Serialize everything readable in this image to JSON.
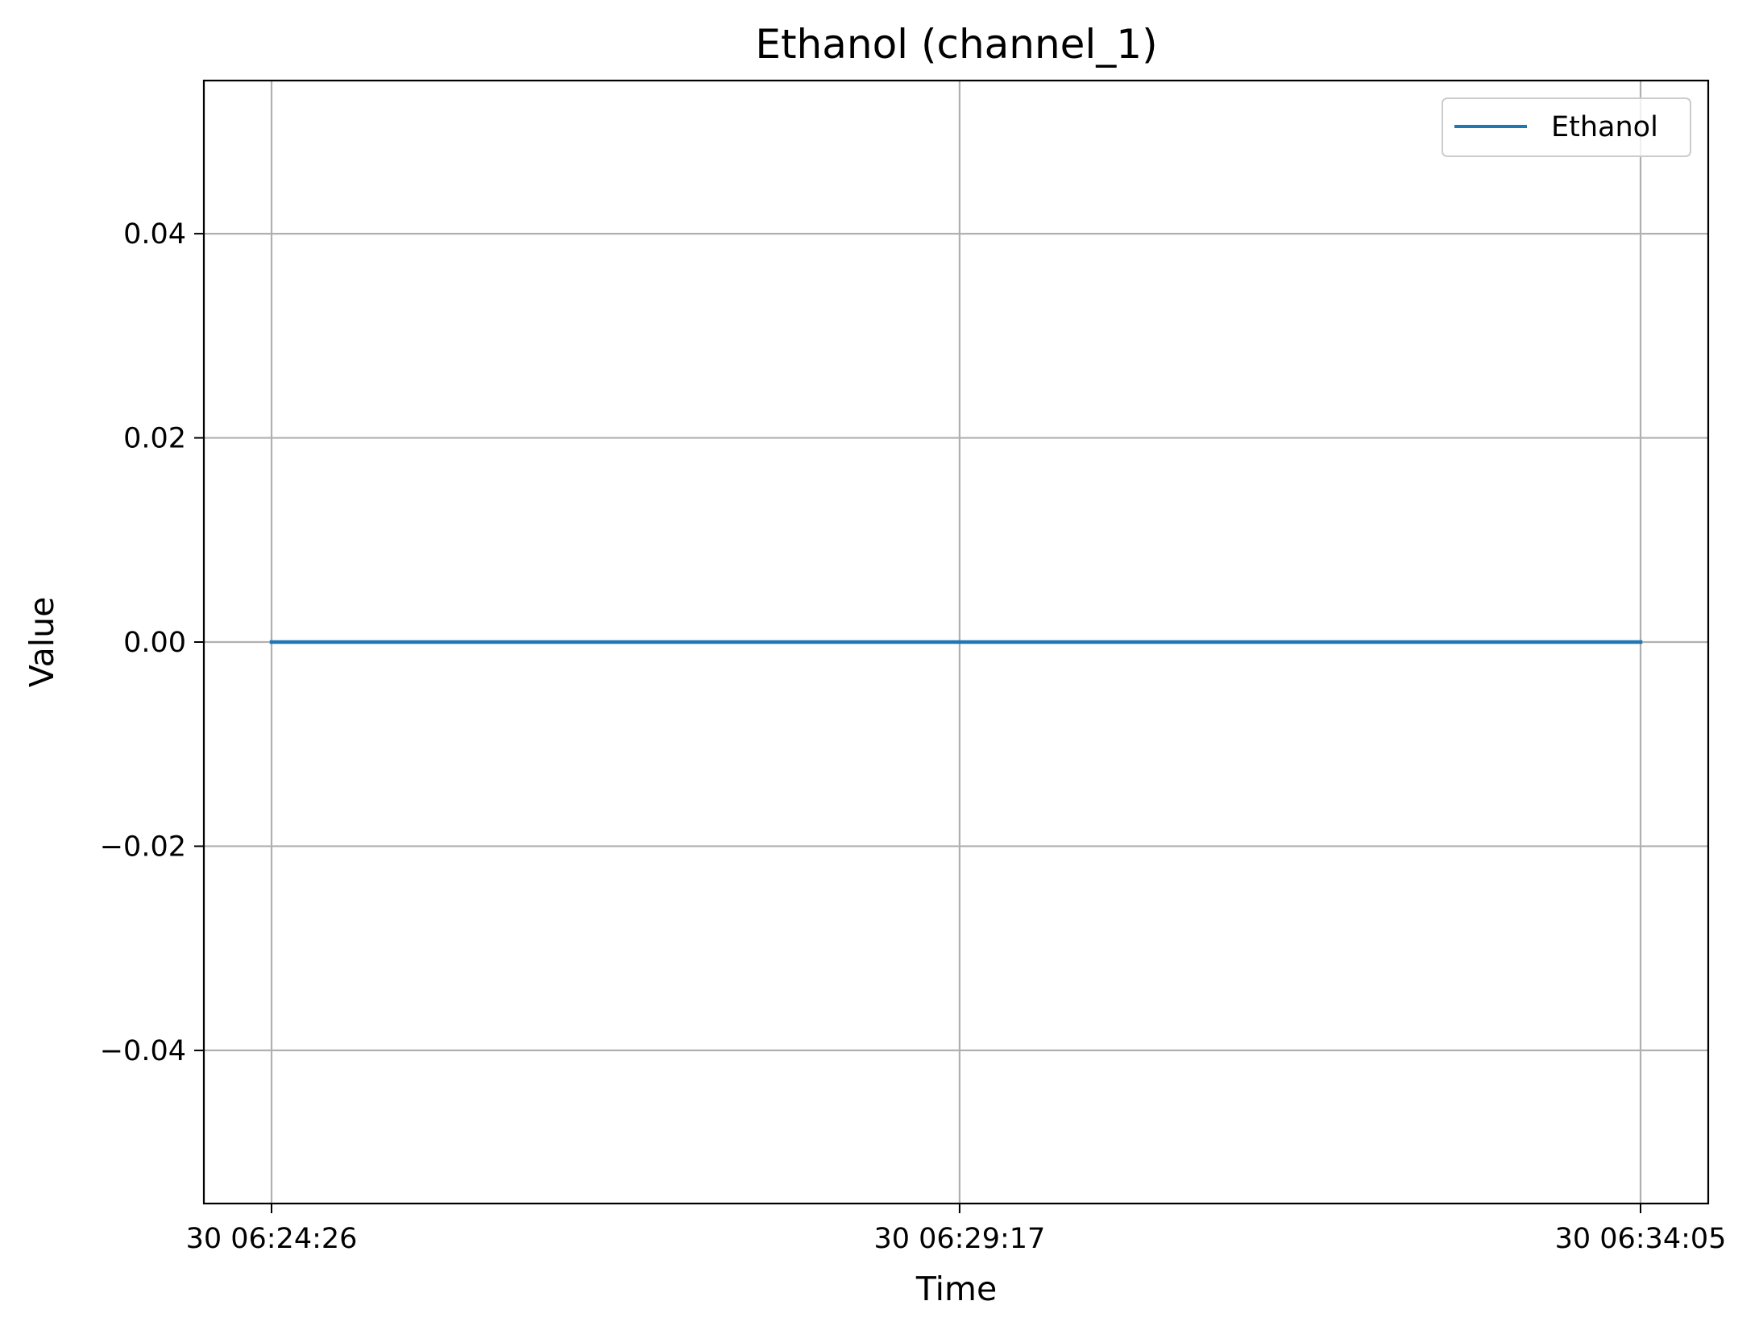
{
  "chart_data": {
    "type": "line",
    "title": "Ethanol (channel_1)",
    "xlabel": "Time",
    "ylabel": "Value",
    "x_ticks": [
      "30 06:24:26",
      "30 06:29:17",
      "30 06:34:05"
    ],
    "y_ticks": [
      "−0.04",
      "−0.02",
      "0.00",
      "0.02",
      "0.04"
    ],
    "y_tick_values": [
      -0.04,
      -0.02,
      0.0,
      0.02,
      0.04
    ],
    "ylim": [
      -0.055,
      0.055
    ],
    "grid": true,
    "legend_position": "top-right",
    "series": [
      {
        "name": "Ethanol",
        "color": "#1f77b4",
        "x": [
          "30 06:24:26",
          "30 06:29:17",
          "30 06:34:05"
        ],
        "values": [
          0.0,
          0.0,
          0.0
        ]
      }
    ]
  }
}
